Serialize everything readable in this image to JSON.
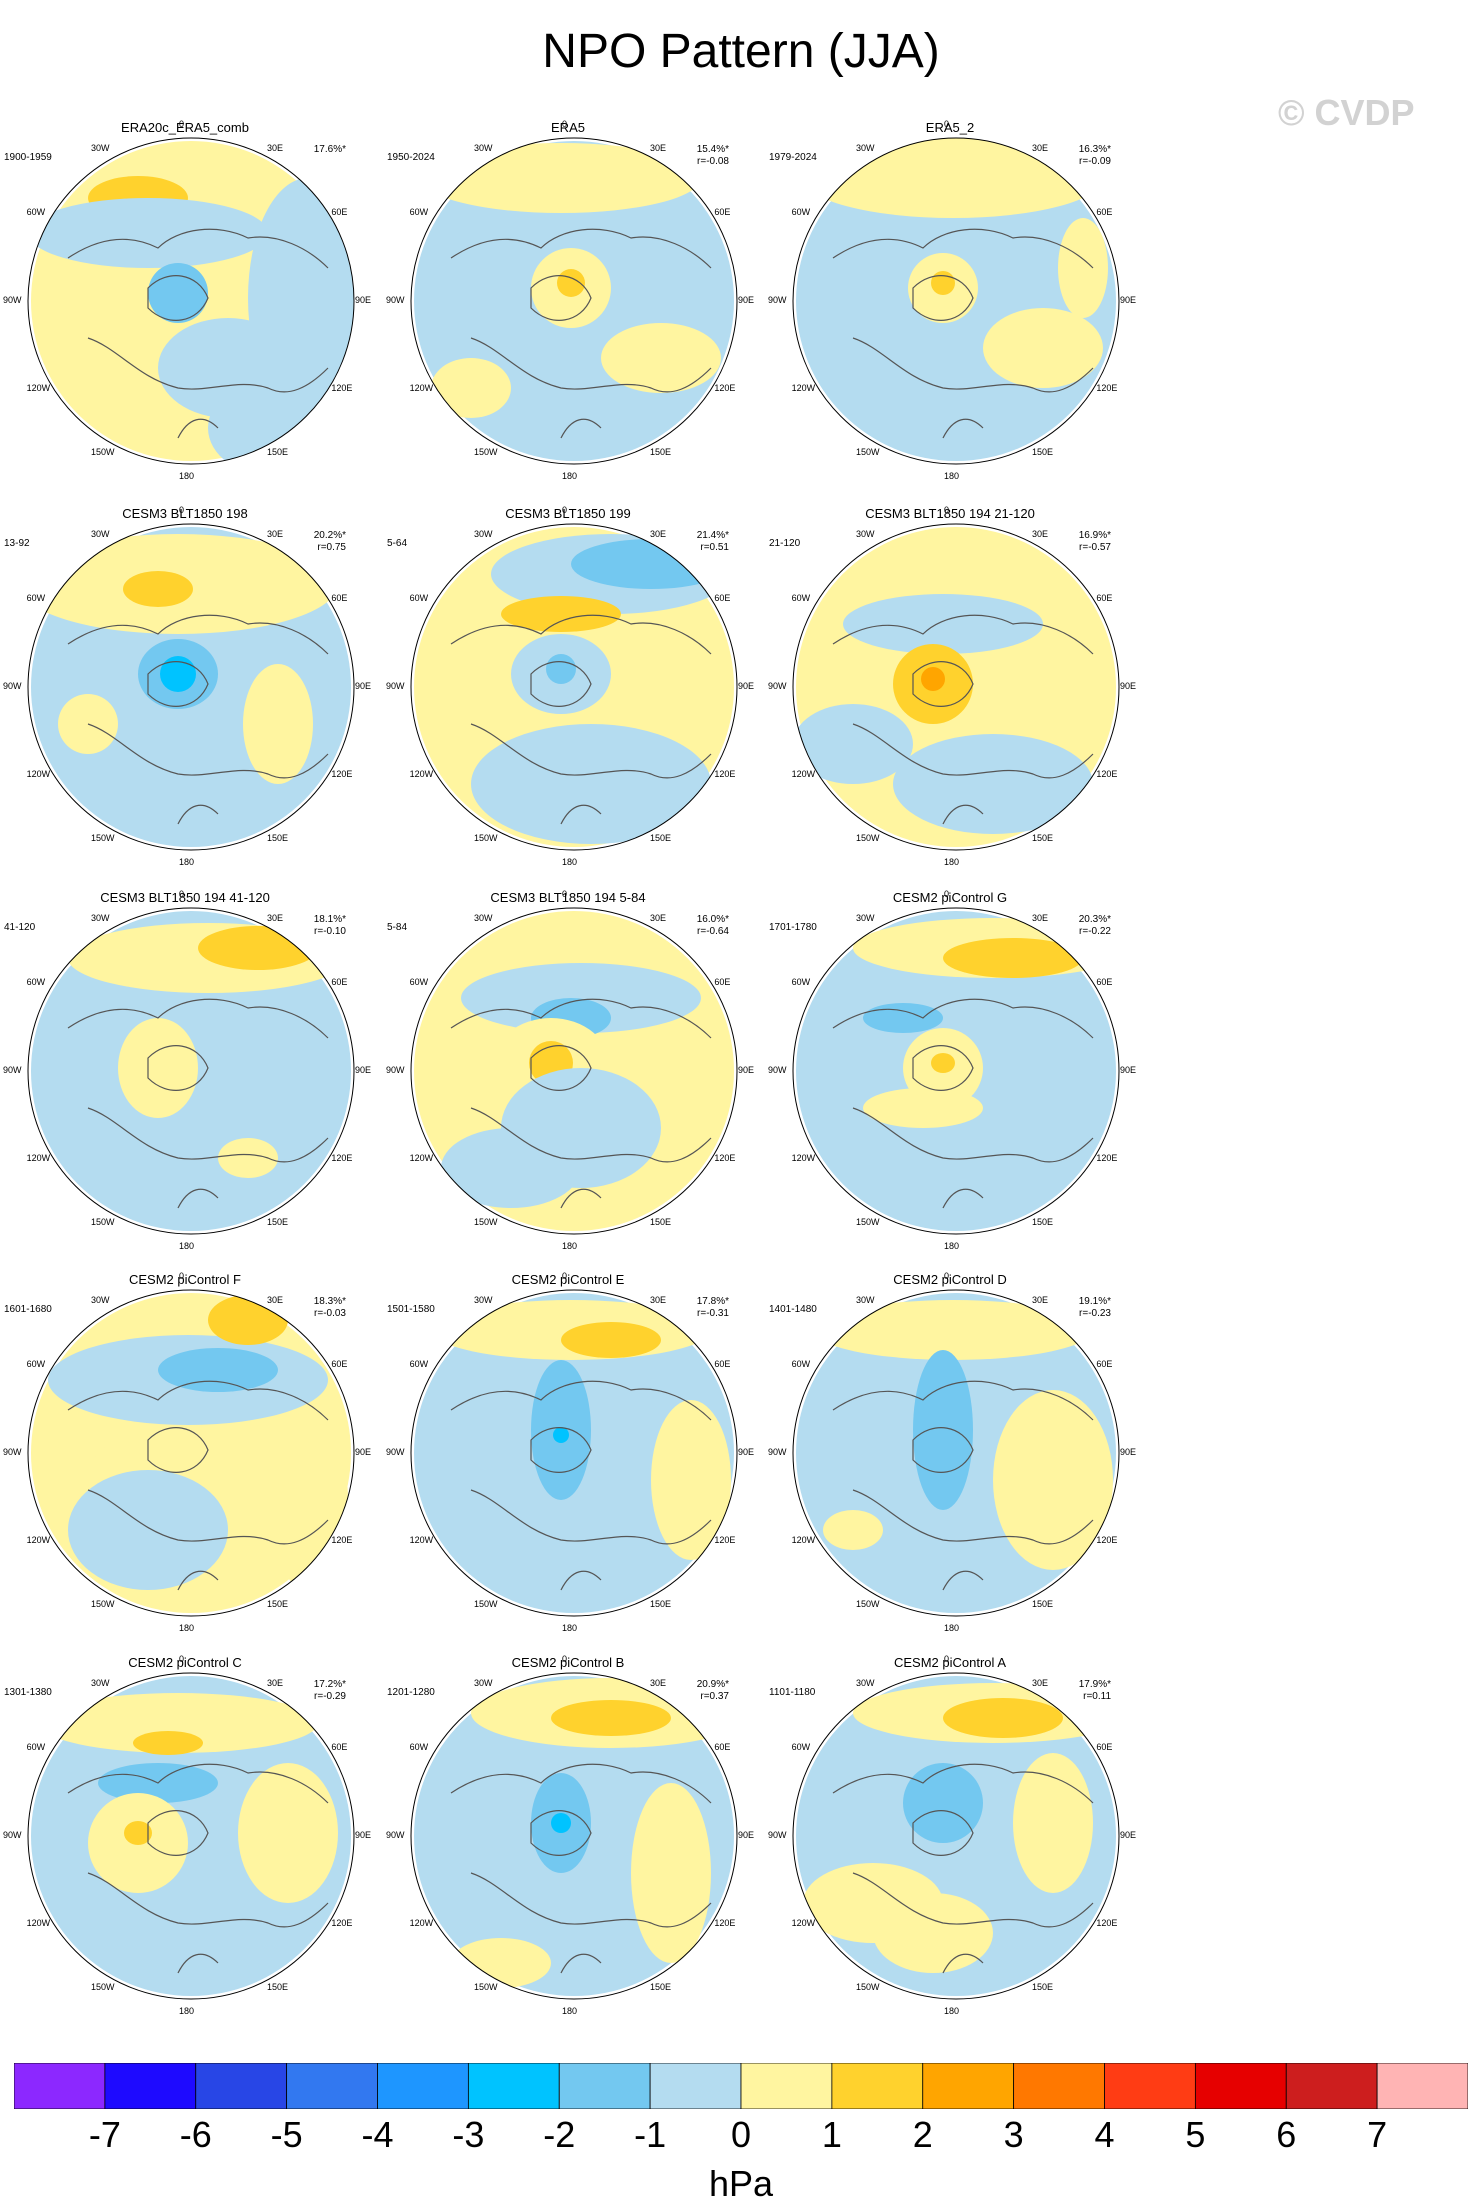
{
  "title": "NPO Pattern (JJA)",
  "watermark": "© CVDP",
  "lon_labels": [
    "180",
    "150E",
    "120E",
    "90E",
    "60E",
    "30E",
    "0",
    "30W",
    "60W",
    "90W",
    "120W",
    "150W"
  ],
  "colors": {
    "neg2": "#73c8f0",
    "neg1": "#b4dcf0",
    "pos1": "#fff5a0",
    "pos2": "#ffd22d",
    "pos3": "#ffa500",
    "coast": "#555555"
  },
  "panels": [
    {
      "title": "ERA20c_ERA5_comb",
      "years": "1900-1959",
      "pct": "17.6%*",
      "r": ""
    },
    {
      "title": "ERA5",
      "years": "1950-2024",
      "pct": "15.4%*",
      "r": "r=-0.08"
    },
    {
      "title": "ERA5_2",
      "years": "1979-2024",
      "pct": "16.3%*",
      "r": "r=-0.09"
    },
    {
      "title": "CESM3 BLT1850 198",
      "years": "13-92",
      "pct": "20.2%*",
      "r": "r=0.75"
    },
    {
      "title": "CESM3 BLT1850 199",
      "years": "5-64",
      "pct": "21.4%*",
      "r": "r=0.51"
    },
    {
      "title": "CESM3 BLT1850 194 21-120",
      "years": "21-120",
      "pct": "16.9%*",
      "r": "r=-0.57"
    },
    {
      "title": "CESM3 BLT1850 194 41-120",
      "years": "41-120",
      "pct": "18.1%*",
      "r": "r=-0.10"
    },
    {
      "title": "CESM3 BLT1850 194 5-84",
      "years": "5-84",
      "pct": "16.0%*",
      "r": "r=-0.64"
    },
    {
      "title": "CESM2 piControl G",
      "years": "1701-1780",
      "pct": "20.3%*",
      "r": "r=-0.22"
    },
    {
      "title": "CESM2 piControl F",
      "years": "1601-1680",
      "pct": "18.3%*",
      "r": "r=-0.03"
    },
    {
      "title": "CESM2 piControl E",
      "years": "1501-1580",
      "pct": "17.8%*",
      "r": "r=-0.31"
    },
    {
      "title": "CESM2 piControl D",
      "years": "1401-1480",
      "pct": "19.1%*",
      "r": "r=-0.23"
    },
    {
      "title": "CESM2 piControl C",
      "years": "1301-1380",
      "pct": "17.2%*",
      "r": "r=-0.29"
    },
    {
      "title": "CESM2 piControl B",
      "years": "1201-1280",
      "pct": "20.9%*",
      "r": "r=0.37"
    },
    {
      "title": "CESM2 piControl A",
      "years": "1101-1180",
      "pct": "17.9%*",
      "r": "r=0.11"
    }
  ],
  "colorbar": {
    "colors": [
      "#8c28ff",
      "#1e0aff",
      "#2846e6",
      "#3278f0",
      "#1e96ff",
      "#00c3ff",
      "#73c8f0",
      "#b4dcf0",
      "#fff5a0",
      "#ffd22d",
      "#ffa500",
      "#ff7800",
      "#ff3c14",
      "#e60000",
      "#cd1e1e",
      "#ffb4b4"
    ],
    "labels": [
      "-7",
      "-6",
      "-5",
      "-4",
      "-3",
      "-2",
      "-1",
      "0",
      "1",
      "2",
      "3",
      "4",
      "5",
      "6",
      "7"
    ],
    "unit": "hPa"
  }
}
